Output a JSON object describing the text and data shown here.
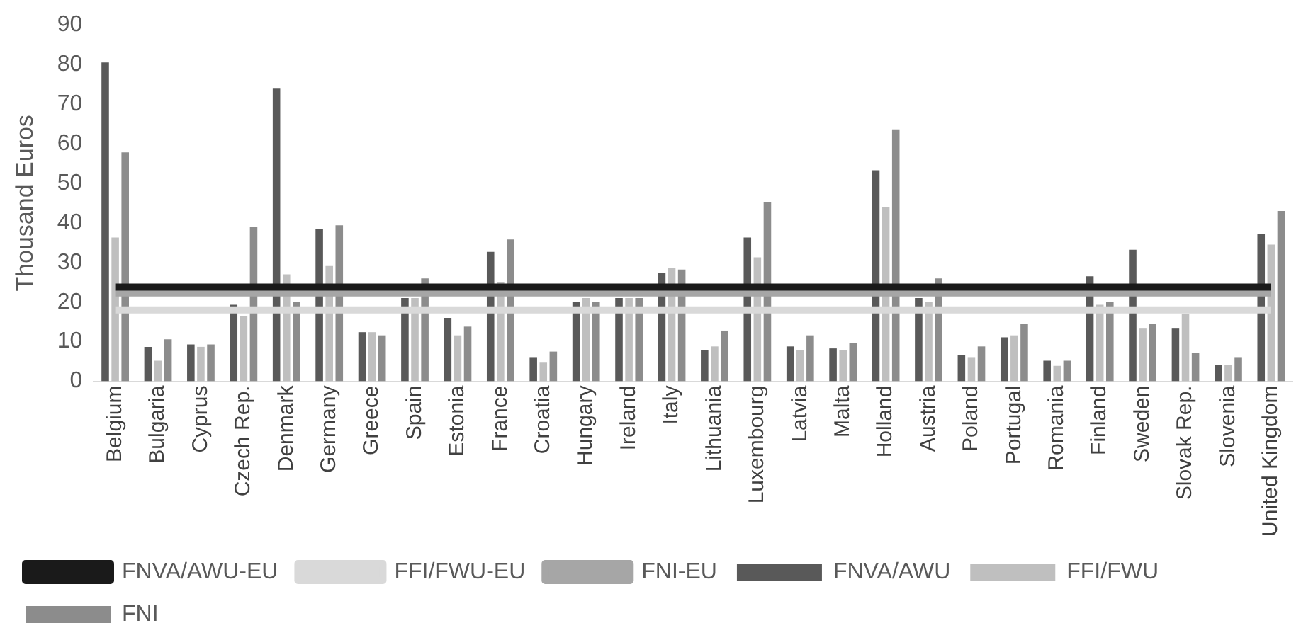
{
  "chart_data": {
    "type": "bar",
    "ylabel": "Thousand Euros",
    "categories": [
      "Belgium",
      "Bulgaria",
      "Cyprus",
      "Czech Rep.",
      "Denmark",
      "Germany",
      "Greece",
      "Spain",
      "Estonia",
      "France",
      "Croatia",
      "Hungary",
      "Ireland",
      "Italy",
      "Lithuania",
      "Luxembourg",
      "Latvia",
      "Malta",
      "Holland",
      "Austria",
      "Poland",
      "Portugal",
      "Romania",
      "Finland",
      "Sweden",
      "Slovak Rep.",
      "Slovenia",
      "United Kingdom"
    ],
    "series": [
      {
        "name": "FNVA/AWU",
        "color": "#595959",
        "values": [
          80.5,
          8.7,
          9.3,
          19.3,
          73.9,
          38.5,
          12.4,
          21,
          16,
          32.7,
          6.1,
          20,
          21,
          27.3,
          7.8,
          36.3,
          8.8,
          8.3,
          53.3,
          21,
          6.6,
          11.1,
          5.2,
          26.5,
          33.2,
          13.3,
          4.2,
          37.3
        ]
      },
      {
        "name": "FFI/FWU",
        "color": "#bfbfbf",
        "values": [
          36.3,
          5.2,
          8.7,
          16.4,
          27,
          29.1,
          12.4,
          21,
          11.6,
          25.1,
          4.7,
          21,
          21,
          28.6,
          8.8,
          31.3,
          7.8,
          7.8,
          44,
          20,
          6.1,
          11.6,
          3.9,
          19.3,
          13.3,
          17,
          4.2,
          34.5
        ]
      },
      {
        "name": "FNI",
        "color": "#8c8c8c",
        "values": [
          57.8,
          10.6,
          9.3,
          38.9,
          20,
          39.4,
          11.6,
          26,
          13.8,
          35.8,
          7.5,
          20,
          21,
          28.2,
          12.8,
          45.2,
          11.6,
          9.7,
          63.6,
          26,
          8.8,
          14.5,
          5.2,
          20,
          14.5,
          7.1,
          6.1,
          43
        ]
      },
      {
        "name": "FNVA/AWU-EU",
        "type": "line",
        "color": "#1a1a1a",
        "values": [
          23.8,
          23.8,
          23.8,
          23.8,
          23.8,
          23.8,
          23.8,
          23.8,
          23.8,
          23.8,
          23.8,
          23.8,
          23.8,
          23.8,
          23.8,
          23.8,
          23.8,
          23.8,
          23.8,
          23.8,
          23.8,
          23.8,
          23.8,
          23.8,
          23.8,
          23.8,
          23.8,
          23.8
        ]
      },
      {
        "name": "FFI/FWU-EU",
        "type": "line",
        "color": "#d9d9d9",
        "values": [
          18,
          18,
          18,
          18,
          18,
          18,
          18,
          18,
          18,
          18,
          18,
          18,
          18,
          18,
          18,
          18,
          18,
          18,
          18,
          18,
          18,
          18,
          18,
          18,
          18,
          18,
          18,
          18
        ]
      },
      {
        "name": "FNI-EU",
        "type": "line",
        "color": "#a6a6a6",
        "values": [
          22.3,
          22.3,
          22.3,
          22.3,
          22.3,
          22.3,
          22.3,
          22.3,
          22.3,
          22.3,
          22.3,
          22.3,
          22.3,
          22.3,
          22.3,
          22.3,
          22.3,
          22.3,
          22.3,
          22.3,
          22.3,
          22.3,
          22.3,
          22.3,
          22.3,
          22.3,
          22.3,
          22.3
        ]
      }
    ],
    "ylim": [
      0,
      90
    ],
    "yticks": [
      0,
      10,
      20,
      30,
      40,
      50,
      60,
      70,
      80,
      90
    ],
    "grid": false,
    "legend": "bottom",
    "marker": "none"
  }
}
